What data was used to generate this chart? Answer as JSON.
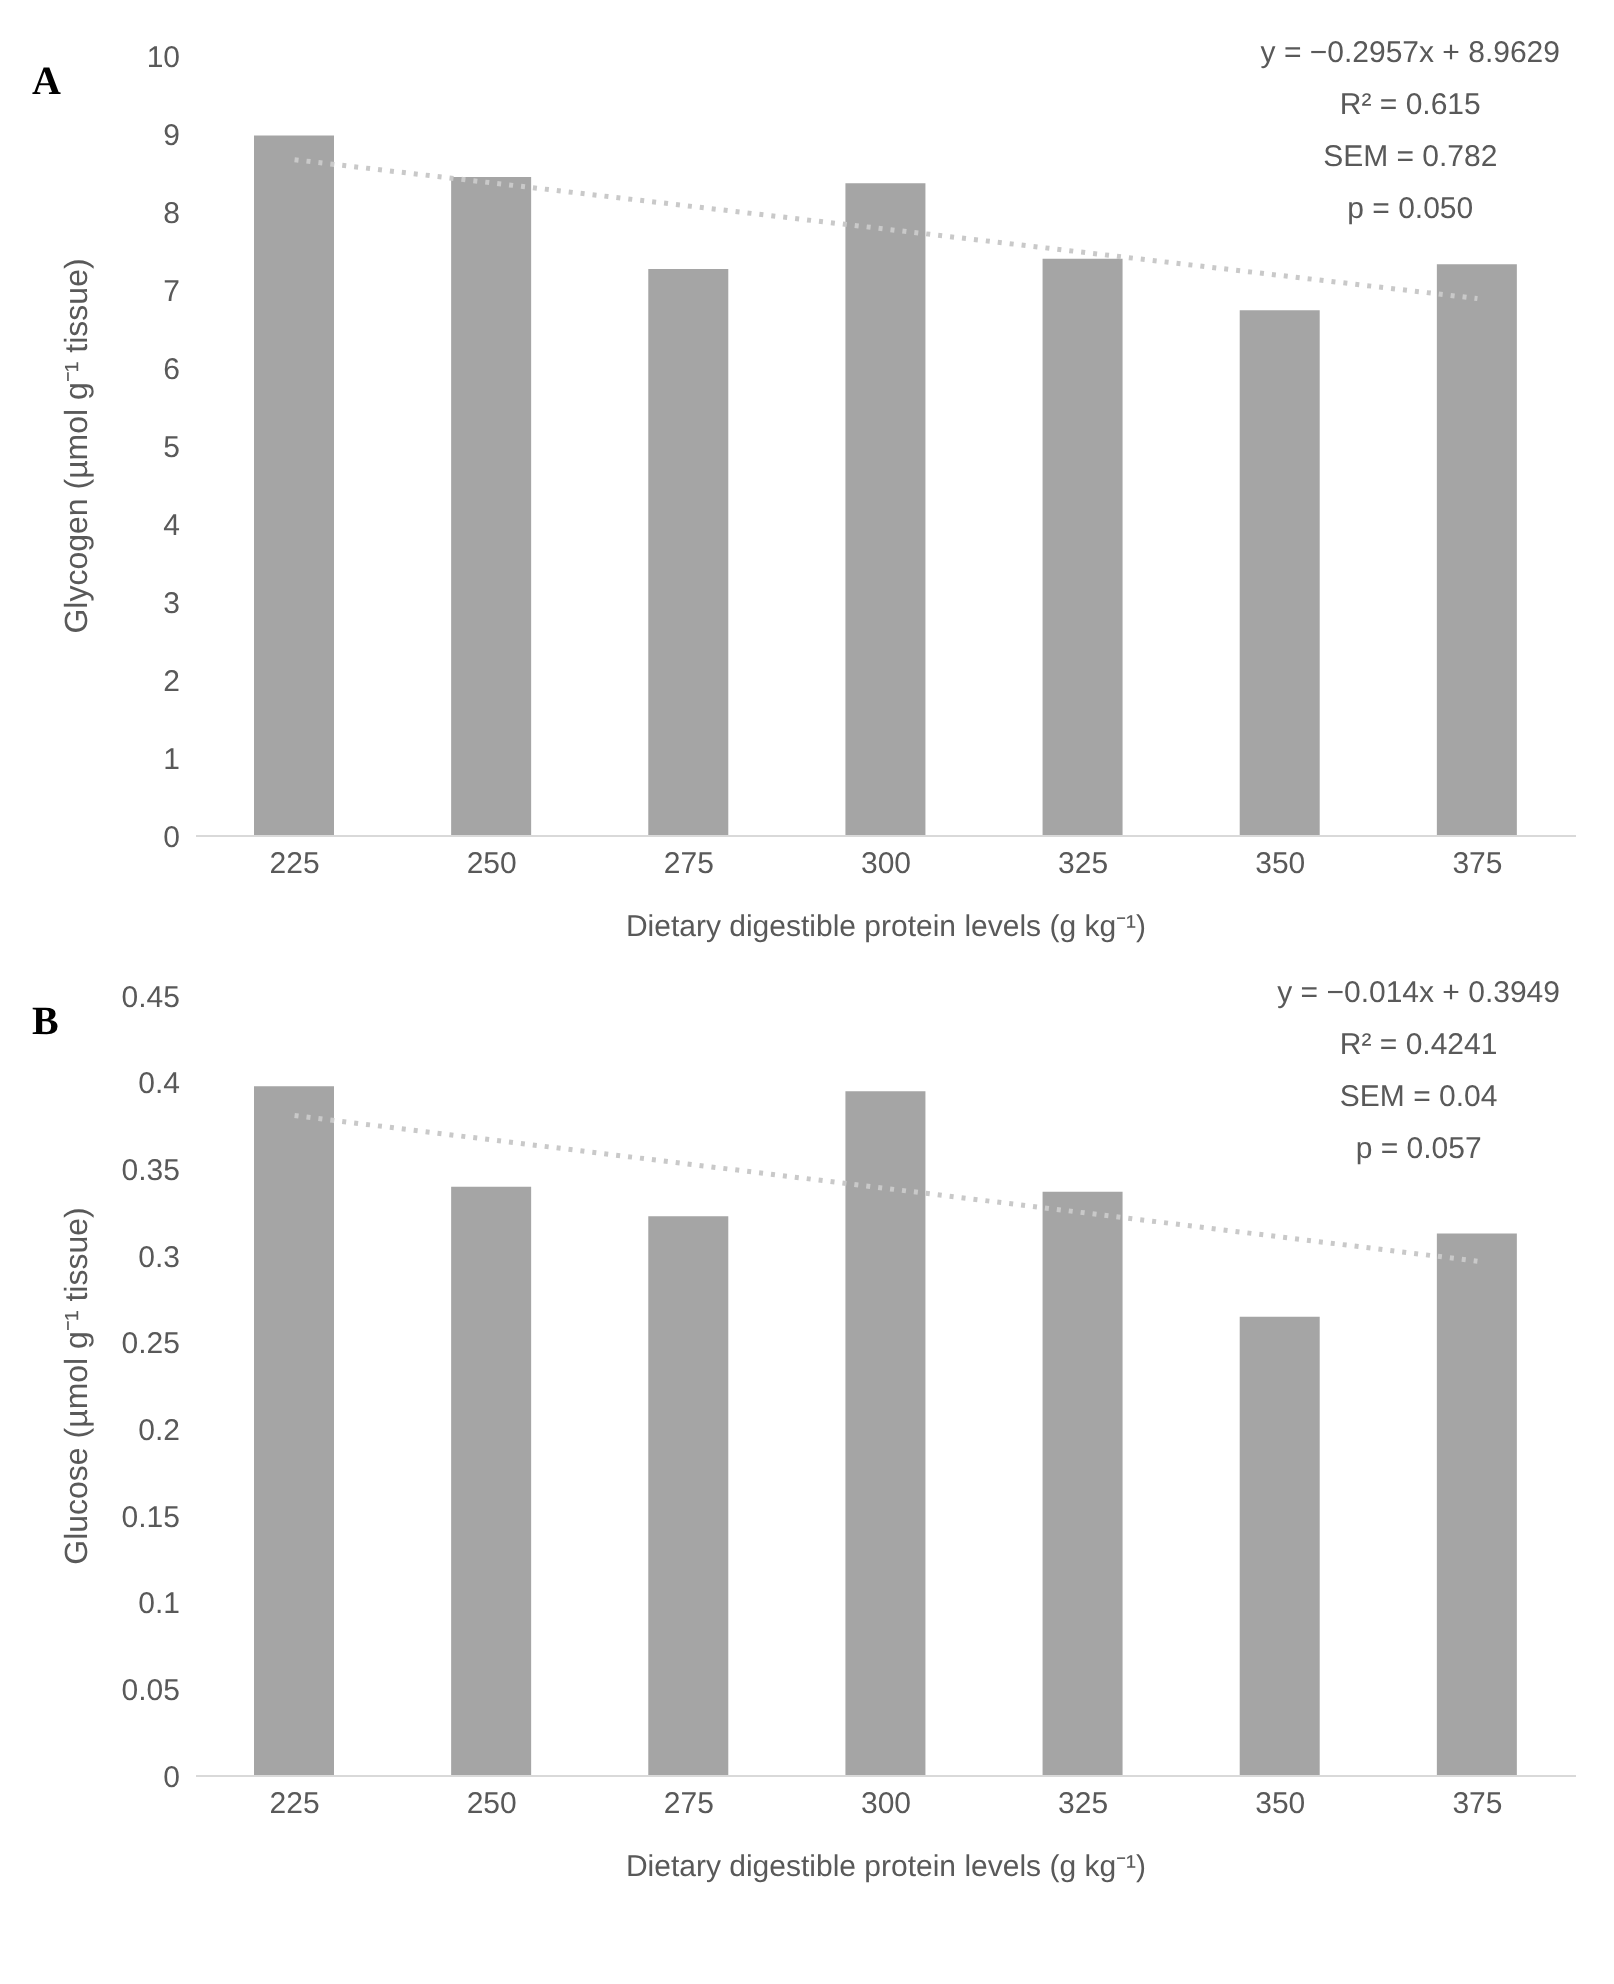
{
  "chart_data": [
    {
      "type": "bar",
      "title": "A",
      "xlabel": "Dietary digestible protein levels (g kg⁻¹)",
      "ylabel": "Glycogen (µmol g⁻¹ tissue)",
      "categories": [
        "225",
        "250",
        "275",
        "300",
        "325",
        "350",
        "375"
      ],
      "ylim": [
        0,
        10
      ],
      "yticks": [
        0,
        1,
        2,
        3,
        4,
        5,
        6,
        7,
        8,
        9,
        10
      ],
      "grid": false,
      "legend": false,
      "series": [
        {
          "color": "#a5a5a5",
          "values": [
            8.98,
            8.45,
            7.27,
            8.37,
            7.4,
            6.74,
            7.33
          ]
        },
        {
          "type": "line",
          "color": "#c9c9c9",
          "line_style": "dotted",
          "marker": "none",
          "x": [
            "225",
            "375"
          ],
          "values": [
            8.67,
            6.89
          ]
        }
      ],
      "annotations": [
        "y = −0.2957x + 8.9629",
        "R² = 0.615",
        "SEM = 0.782",
        "p = 0.050"
      ]
    },
    {
      "type": "bar",
      "title": "B",
      "xlabel": "Dietary digestible protein levels (g kg⁻¹)",
      "ylabel": "Glucose (µmol g⁻¹ tissue)",
      "categories": [
        "225",
        "250",
        "275",
        "300",
        "325",
        "350",
        "375"
      ],
      "ylim": [
        0,
        0.45
      ],
      "yticks": [
        0,
        0.05,
        0.1,
        0.15,
        0.2,
        0.25,
        0.3,
        0.35,
        0.4,
        0.45
      ],
      "grid": false,
      "legend": false,
      "series": [
        {
          "color": "#a5a5a5",
          "values": [
            0.398,
            0.34,
            0.323,
            0.395,
            0.337,
            0.265,
            0.313
          ]
        },
        {
          "type": "line",
          "color": "#c9c9c9",
          "line_style": "dotted",
          "marker": "none",
          "x": [
            "225",
            "375"
          ],
          "values": [
            0.381,
            0.297
          ]
        }
      ],
      "annotations": [
        "y = −0.014x + 0.3949",
        "R² = 0.4241",
        "SEM = 0.04",
        "p = 0.057"
      ]
    }
  ]
}
